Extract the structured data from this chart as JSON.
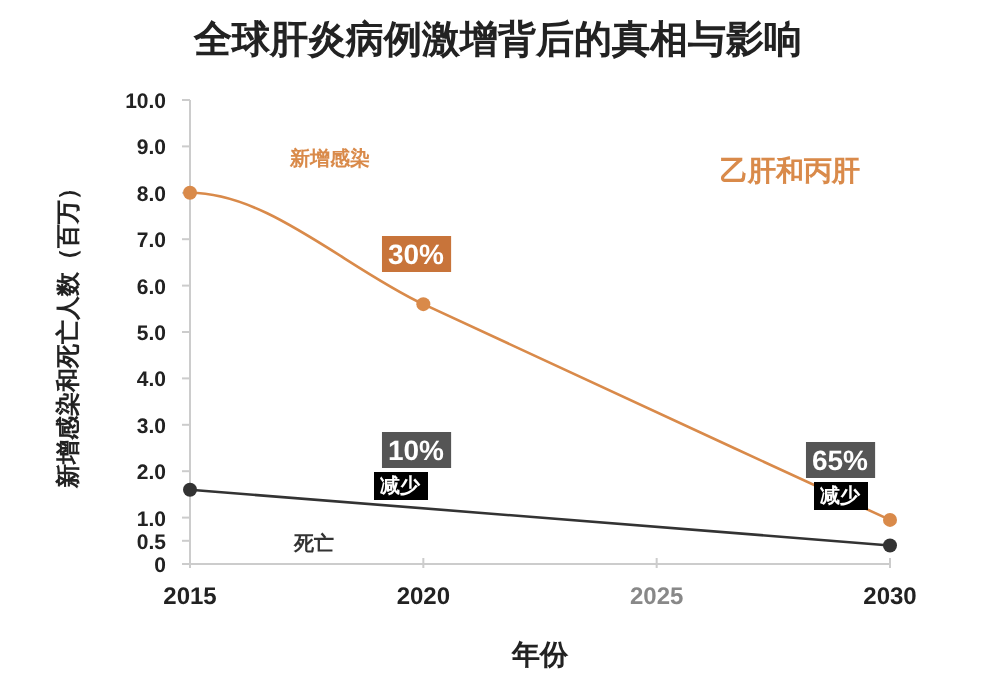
{
  "chart_data": {
    "type": "line",
    "title": "全球肝炎病例激增背后的真相与影响",
    "xlabel": "年份",
    "ylabel": "新增感染和死亡人数（百万）",
    "xlim": [
      2015,
      2030
    ],
    "xticks": [
      2015,
      2020,
      2025,
      2030
    ],
    "ylim": [
      0,
      10
    ],
    "yticks": [
      0,
      {
        "value": 0.5,
        "label": "0.5"
      },
      {
        "value": 1,
        "label": "1.0"
      },
      {
        "value": 2,
        "label": "2.0"
      },
      {
        "value": 3,
        "label": "3.0"
      },
      {
        "value": 4,
        "label": "4.0"
      },
      {
        "value": 5,
        "label": "5.0"
      },
      {
        "value": 6,
        "label": "6.0"
      },
      {
        "value": 7,
        "label": "7.0"
      },
      {
        "value": 8,
        "label": "8.0"
      },
      {
        "value": 9,
        "label": "9.0"
      },
      {
        "value": 10,
        "label": "10.0"
      }
    ],
    "marker": "circle",
    "legend": false,
    "grid": false,
    "series": [
      {
        "name": "新增感染",
        "color": "#d98a4a",
        "x": [
          2015,
          2020,
          2030
        ],
        "values": [
          8.0,
          5.6,
          0.95
        ]
      },
      {
        "name": "死亡",
        "color": "#333333",
        "x": [
          2015,
          2030
        ],
        "values": [
          1.6,
          0.4
        ]
      }
    ],
    "annotations": [
      "乙肝和丙肝",
      "30%",
      "10%",
      "减少",
      "65%",
      "减少"
    ]
  }
}
